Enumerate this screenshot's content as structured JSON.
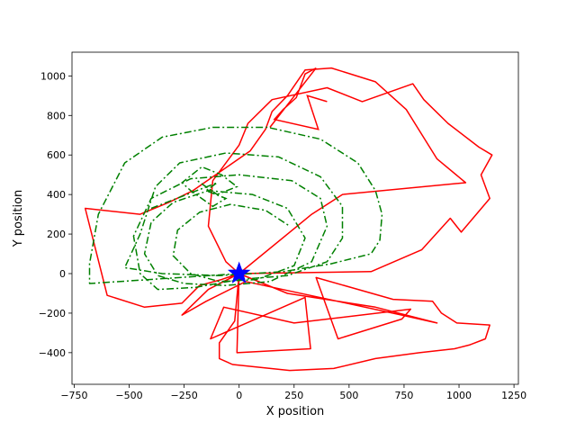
{
  "chart_data": {
    "type": "line",
    "title": "",
    "xlabel": "X position",
    "ylabel": "Y position",
    "xlim": [
      -760,
      1270
    ],
    "ylim": [
      -560,
      1120
    ],
    "x_ticks": [
      -750,
      -500,
      -250,
      0,
      250,
      500,
      750,
      1000,
      1250
    ],
    "x_tick_labels": [
      "−750",
      "−500",
      "−250",
      "0",
      "250",
      "500",
      "750",
      "1000",
      "1250"
    ],
    "y_ticks": [
      -400,
      -200,
      0,
      200,
      400,
      600,
      800,
      1000
    ],
    "y_tick_labels": [
      "−400",
      "−200",
      "0",
      "200",
      "400",
      "600",
      "800",
      "1000"
    ],
    "grid": false,
    "colors": {
      "red": "#ff0000",
      "green": "#008000",
      "blue": "#0000ff"
    },
    "series": [
      {
        "style": "solid",
        "color": "#ff0000",
        "points": [
          [
            0,
            0
          ],
          [
            -10,
            -400
          ],
          [
            325,
            -380
          ],
          [
            300,
            -120
          ],
          [
            -130,
            -330
          ],
          [
            -70,
            -170
          ],
          [
            250,
            -250
          ],
          [
            780,
            -180
          ],
          [
            740,
            -230
          ],
          [
            450,
            -330
          ],
          [
            350,
            -20
          ],
          [
            700,
            -130
          ],
          [
            880,
            -140
          ],
          [
            920,
            -200
          ],
          [
            990,
            -250
          ],
          [
            1140,
            -260
          ],
          [
            1120,
            -330
          ],
          [
            1050,
            -360
          ],
          [
            980,
            -380
          ],
          [
            820,
            -400
          ],
          [
            620,
            -430
          ],
          [
            430,
            -480
          ],
          [
            230,
            -490
          ],
          [
            -30,
            -460
          ],
          [
            -90,
            -430
          ],
          [
            -90,
            -350
          ],
          [
            -20,
            -240
          ],
          [
            0,
            0
          ],
          [
            220,
            -100
          ],
          [
            620,
            -170
          ],
          [
            900,
            -250
          ],
          [
            740,
            -210
          ],
          [
            30,
            -40
          ],
          [
            -150,
            -140
          ],
          [
            -260,
            -210
          ],
          [
            -140,
            -80
          ],
          [
            0,
            0
          ],
          [
            330,
            300
          ],
          [
            470,
            400
          ],
          [
            1030,
            460
          ],
          [
            900,
            580
          ],
          [
            760,
            830
          ],
          [
            620,
            970
          ],
          [
            420,
            1040
          ],
          [
            300,
            1030
          ],
          [
            220,
            900
          ],
          [
            150,
            820
          ],
          [
            120,
            730
          ],
          [
            50,
            620
          ],
          [
            -80,
            520
          ],
          [
            -210,
            420
          ],
          [
            -320,
            360
          ],
          [
            -450,
            300
          ],
          [
            -700,
            330
          ],
          [
            -600,
            -110
          ],
          [
            -430,
            -170
          ],
          [
            -260,
            -150
          ],
          [
            -180,
            -60
          ],
          [
            -80,
            -30
          ],
          [
            0,
            0
          ],
          [
            600,
            10
          ],
          [
            830,
            120
          ],
          [
            960,
            280
          ],
          [
            1010,
            210
          ],
          [
            1140,
            380
          ],
          [
            1100,
            500
          ],
          [
            1150,
            600
          ],
          [
            1090,
            640
          ],
          [
            950,
            760
          ],
          [
            840,
            880
          ],
          [
            790,
            960
          ],
          [
            560,
            870
          ],
          [
            400,
            940
          ],
          [
            150,
            880
          ],
          [
            40,
            760
          ],
          [
            0,
            650
          ],
          [
            -120,
            470
          ],
          [
            -140,
            240
          ],
          [
            -60,
            60
          ],
          [
            0,
            0
          ]
        ],
        "zigzag": [
          [
            140,
            740
          ],
          [
            350,
            1040
          ],
          [
            300,
            1010
          ],
          [
            260,
            890
          ],
          [
            200,
            830
          ],
          [
            160,
            780
          ],
          [
            360,
            730
          ],
          [
            310,
            900
          ],
          [
            400,
            870
          ]
        ]
      },
      {
        "style": "dashdot",
        "color": "#008000",
        "points": [
          [
            0,
            0
          ],
          [
            -680,
            -50
          ],
          [
            -680,
            50
          ],
          [
            -640,
            300
          ],
          [
            -520,
            560
          ],
          [
            -350,
            690
          ],
          [
            -120,
            740
          ],
          [
            130,
            740
          ],
          [
            370,
            680
          ],
          [
            540,
            560
          ],
          [
            620,
            420
          ],
          [
            650,
            300
          ],
          [
            640,
            170
          ],
          [
            600,
            100
          ],
          [
            420,
            50
          ],
          [
            200,
            10
          ],
          [
            -90,
            -10
          ],
          [
            -350,
            0
          ],
          [
            -520,
            30
          ],
          [
            -450,
            200
          ],
          [
            -380,
            440
          ],
          [
            -270,
            560
          ],
          [
            -60,
            610
          ],
          [
            180,
            590
          ],
          [
            370,
            490
          ],
          [
            470,
            340
          ],
          [
            470,
            180
          ],
          [
            400,
            60
          ],
          [
            220,
            -10
          ],
          [
            0,
            -30
          ],
          [
            -200,
            -70
          ],
          [
            -370,
            -80
          ],
          [
            -450,
            0
          ],
          [
            -480,
            190
          ],
          [
            -400,
            380
          ],
          [
            -220,
            480
          ],
          [
            0,
            500
          ],
          [
            240,
            470
          ],
          [
            370,
            380
          ],
          [
            400,
            240
          ],
          [
            330,
            60
          ],
          [
            140,
            -40
          ],
          [
            -60,
            -60
          ],
          [
            -250,
            -50
          ],
          [
            -370,
            -10
          ],
          [
            -430,
            100
          ],
          [
            -400,
            260
          ],
          [
            -300,
            360
          ],
          [
            -140,
            420
          ],
          [
            60,
            400
          ],
          [
            220,
            330
          ],
          [
            300,
            180
          ],
          [
            250,
            40
          ],
          [
            80,
            -30
          ],
          [
            -90,
            -40
          ],
          [
            -220,
            0
          ],
          [
            -300,
            90
          ],
          [
            -280,
            220
          ],
          [
            -180,
            310
          ],
          [
            -40,
            350
          ],
          [
            120,
            320
          ],
          [
            230,
            240
          ]
        ],
        "scribble": [
          [
            -400,
            330
          ],
          [
            -100,
            460
          ],
          [
            -150,
            420
          ],
          [
            -60,
            380
          ],
          [
            -120,
            340
          ],
          [
            -220,
            420
          ],
          [
            -260,
            460
          ],
          [
            -170,
            540
          ],
          [
            -80,
            500
          ],
          [
            -10,
            440
          ],
          [
            -100,
            400
          ],
          [
            -190,
            470
          ]
        ]
      }
    ],
    "marker": {
      "type": "star",
      "color": "#0000ff",
      "x": 0,
      "y": 0
    }
  }
}
